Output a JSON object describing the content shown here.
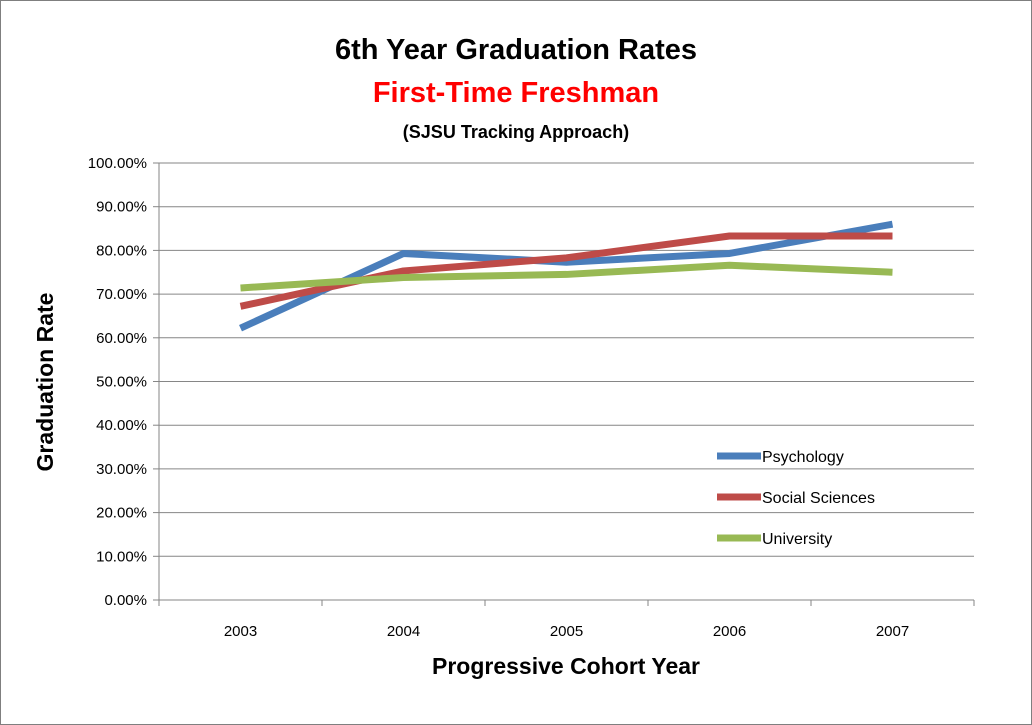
{
  "chart_data": {
    "type": "line",
    "title": "6th Year Graduation Rates",
    "subtitle": "First-Time Freshman",
    "subtitle2": "(SJSU Tracking Approach)",
    "xlabel": "Progressive Cohort Year",
    "ylabel": "Graduation Rate",
    "categories": [
      "2003",
      "2004",
      "2005",
      "2006",
      "2007"
    ],
    "ylim": [
      0,
      100
    ],
    "ytick_values": [
      0,
      10,
      20,
      30,
      40,
      50,
      60,
      70,
      80,
      90,
      100
    ],
    "ytick_labels": [
      "0.00%",
      "10.00%",
      "20.00%",
      "30.00%",
      "40.00%",
      "50.00%",
      "60.00%",
      "70.00%",
      "80.00%",
      "90.00%",
      "100.00%"
    ],
    "grid": true,
    "legend_position": "inside-right",
    "series": [
      {
        "name": "Psychology",
        "color": "#4a7ebb",
        "values": [
          62.2,
          79.3,
          77.3,
          79.3,
          86.0
        ]
      },
      {
        "name": "Social Sciences",
        "color": "#be4b48",
        "values": [
          67.2,
          75.3,
          78.3,
          83.3,
          83.3
        ]
      },
      {
        "name": "University",
        "color": "#98b954",
        "values": [
          71.4,
          73.8,
          74.5,
          76.6,
          75.0
        ]
      }
    ],
    "title_color": "#000000",
    "subtitle_color": "#ff0000"
  }
}
